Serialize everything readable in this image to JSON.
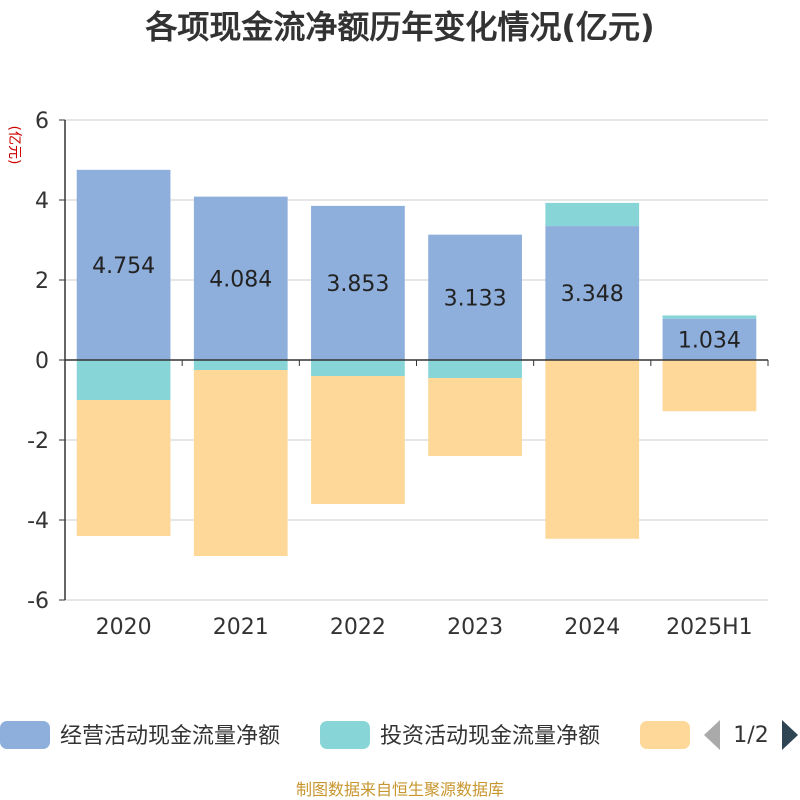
{
  "chart_data": {
    "type": "bar",
    "title": "各项现金流净额历年变化情况(亿元)",
    "ylabel": "(亿元)",
    "categories": [
      "2020",
      "2021",
      "2022",
      "2023",
      "2024",
      "2025H1"
    ],
    "ylim": [
      -6,
      6
    ],
    "yticks": [
      -6,
      -4,
      -2,
      0,
      2,
      4,
      6
    ],
    "series": [
      {
        "name": "经营活动现金流量净额",
        "color": "#8eaedb",
        "values": [
          4.754,
          4.084,
          3.853,
          3.133,
          3.348,
          1.034
        ],
        "labels": [
          "4.754",
          "4.084",
          "3.853",
          "3.133",
          "3.348",
          "1.034"
        ]
      },
      {
        "name": "投资活动现金流量净额",
        "color": "#88d5d8",
        "values": [
          -1.0,
          -0.25,
          -0.4,
          -0.45,
          0.58,
          0.08
        ]
      },
      {
        "name": "",
        "color": "#fdd899",
        "values": [
          -3.4,
          -4.65,
          -3.2,
          -1.95,
          -4.47,
          -1.28
        ]
      }
    ],
    "stack": true,
    "grid": true,
    "legend": "bottom"
  },
  "legend": {
    "page_indicator": "1/2"
  },
  "footer": {
    "source": "制图数据来自恒生聚源数据库"
  },
  "colors": {
    "axis": "#333333",
    "grid": "#cccccc",
    "arrow_inactive": "#aaaaaa",
    "arrow_active": "#2f4554"
  }
}
